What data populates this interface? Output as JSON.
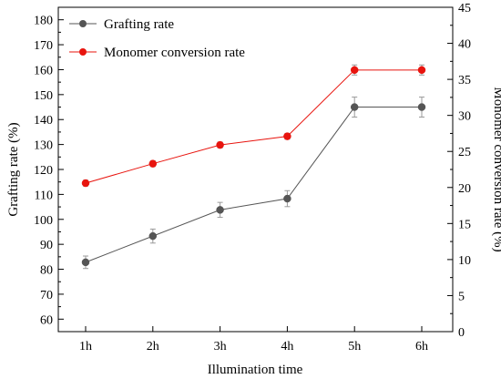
{
  "chart_data": {
    "type": "line",
    "xlabel": "Illumination time",
    "ylabel": "Grafting rate (%)",
    "ylabel_right": "Monomer conversion rate (%)",
    "categories": [
      "1h",
      "2h",
      "3h",
      "4h",
      "5h",
      "6h"
    ],
    "ylim": [
      55,
      185
    ],
    "ylim_right": [
      0,
      45
    ],
    "yticks": [
      60,
      70,
      80,
      90,
      100,
      110,
      120,
      130,
      140,
      150,
      160,
      170,
      180
    ],
    "yticks_right": [
      0,
      5,
      10,
      15,
      20,
      25,
      30,
      35,
      40,
      45
    ],
    "legend_position": "top-left",
    "grid": false,
    "series": [
      {
        "name": "Grafting rate",
        "axis": "left",
        "color": "#555555",
        "values": [
          82.8,
          93.3,
          103.8,
          108.3,
          145.0,
          145.0
        ],
        "errors": [
          2.5,
          2.8,
          3.0,
          3.2,
          4.0,
          4.0
        ]
      },
      {
        "name": "Monomer conversion rate",
        "axis": "right",
        "color": "#e8140e",
        "values": [
          20.6,
          23.3,
          25.9,
          27.1,
          36.3,
          36.3
        ],
        "errors": [
          0.4,
          0.4,
          0.4,
          0.4,
          0.7,
          0.7
        ]
      }
    ]
  }
}
